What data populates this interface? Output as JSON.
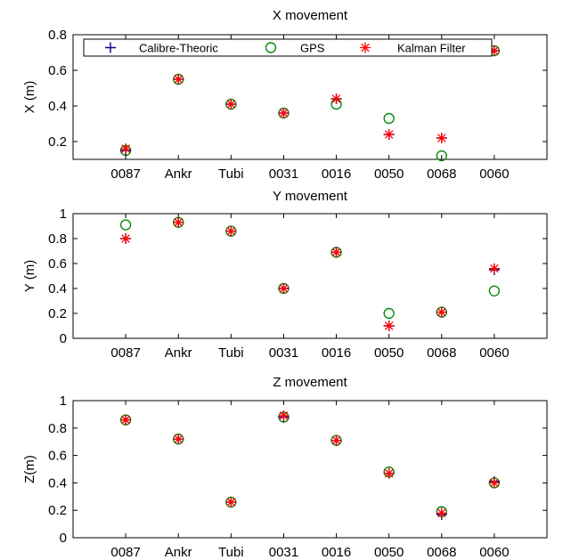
{
  "colors": {
    "calibre": "#00008b",
    "gps": "#0a8a0a",
    "kalman": "#ff0000",
    "axis": "#000000"
  },
  "legend": {
    "placement": "top",
    "entries": [
      {
        "label": "Calibre-Theoric",
        "marker": "plus",
        "color": "#00008b"
      },
      {
        "label": "GPS",
        "marker": "circle",
        "color": "#0a8a0a"
      },
      {
        "label": "Kalman Filter",
        "marker": "asterisk",
        "color": "#ff0000"
      }
    ]
  },
  "chart_data": [
    {
      "type": "scatter",
      "title": "X movement",
      "ylabel": "X (m)",
      "categories": [
        "0087",
        "Ankr",
        "Tubi",
        "0031",
        "0016",
        "0050",
        "0068",
        "0060"
      ],
      "ylim": [
        0.1,
        0.8
      ],
      "yticks": [
        "0.2",
        "0.4",
        "0.6",
        "0.8"
      ],
      "ytick_values": [
        0.2,
        0.4,
        0.6,
        0.8
      ],
      "grid": false,
      "series": [
        {
          "name": "Calibre-Theoric",
          "marker": "plus",
          "values": [
            0.15,
            0.55,
            0.41,
            0.36,
            0.44,
            0.24,
            0.22,
            0.71
          ]
        },
        {
          "name": "GPS",
          "marker": "circle",
          "values": [
            0.15,
            0.55,
            0.41,
            0.36,
            0.41,
            0.33,
            0.12,
            0.71
          ]
        },
        {
          "name": "Kalman Filter",
          "marker": "asterisk",
          "values": [
            0.16,
            0.55,
            0.41,
            0.36,
            0.44,
            0.24,
            0.22,
            0.71
          ]
        }
      ]
    },
    {
      "type": "scatter",
      "title": "Y movement",
      "ylabel": "Y (m)",
      "categories": [
        "0087",
        "Ankr",
        "Tubi",
        "0031",
        "0016",
        "0050",
        "0068",
        "0060"
      ],
      "ylim": [
        0,
        1
      ],
      "yticks": [
        "0",
        "0.2",
        "0.4",
        "0.6",
        "0.8",
        "1"
      ],
      "ytick_values": [
        0,
        0.2,
        0.4,
        0.6,
        0.8,
        1
      ],
      "grid": false,
      "series": [
        {
          "name": "Calibre-Theoric",
          "marker": "plus",
          "values": [
            0.8,
            0.93,
            0.86,
            0.4,
            0.69,
            0.1,
            0.21,
            0.55
          ]
        },
        {
          "name": "GPS",
          "marker": "circle",
          "values": [
            0.91,
            0.93,
            0.86,
            0.4,
            0.69,
            0.2,
            0.21,
            0.38
          ]
        },
        {
          "name": "Kalman Filter",
          "marker": "asterisk",
          "values": [
            0.8,
            0.93,
            0.86,
            0.4,
            0.69,
            0.1,
            0.21,
            0.56
          ]
        }
      ]
    },
    {
      "type": "scatter",
      "title": "Z movement",
      "ylabel": "Z(m)",
      "categories": [
        "0087",
        "Ankr",
        "Tubi",
        "0031",
        "0016",
        "0050",
        "0068",
        "0060"
      ],
      "ylim": [
        0,
        1
      ],
      "yticks": [
        "0",
        "0.2",
        "0.4",
        "0.6",
        "0.8",
        "1"
      ],
      "ytick_values": [
        0,
        0.2,
        0.4,
        0.6,
        0.8,
        1
      ],
      "grid": false,
      "series": [
        {
          "name": "Calibre-Theoric",
          "marker": "plus",
          "values": [
            0.86,
            0.72,
            0.26,
            0.88,
            0.71,
            0.47,
            0.17,
            0.41
          ]
        },
        {
          "name": "GPS",
          "marker": "circle",
          "values": [
            0.86,
            0.72,
            0.26,
            0.88,
            0.71,
            0.48,
            0.19,
            0.4
          ]
        },
        {
          "name": "Kalman Filter",
          "marker": "asterisk",
          "values": [
            0.86,
            0.72,
            0.26,
            0.89,
            0.71,
            0.47,
            0.18,
            0.4
          ]
        }
      ]
    }
  ]
}
